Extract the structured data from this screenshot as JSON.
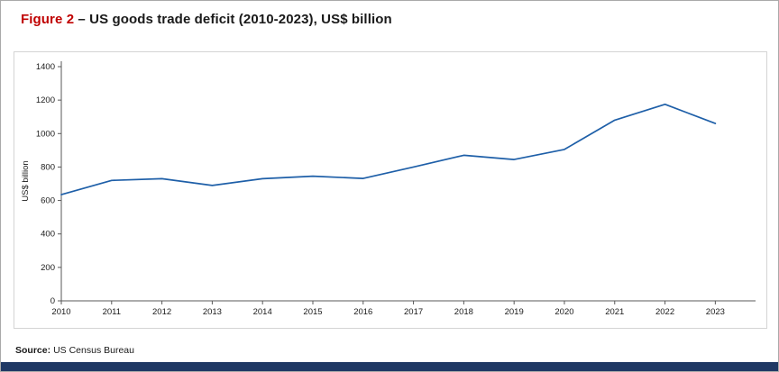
{
  "title": {
    "figure_label": "Figure 2",
    "separator": " – ",
    "text": "US goods trade deficit (2010-2023), US$ billion"
  },
  "source": {
    "label": "Source:",
    "text": "US Census Bureau"
  },
  "colors": {
    "figure_label_red": "#c00000",
    "line": "#1e5fa8",
    "bottom_bar": "#1f3864",
    "axis": "#595959",
    "chart_border": "#d4d4d4"
  },
  "chart_data": {
    "type": "line",
    "title": "US goods trade deficit (2010-2023)",
    "x": [
      2010,
      2011,
      2012,
      2013,
      2014,
      2015,
      2016,
      2017,
      2018,
      2019,
      2020,
      2021,
      2022,
      2023
    ],
    "series": [
      {
        "name": "US goods trade deficit (US$ billion)",
        "values": [
          635,
          720,
          730,
          690,
          730,
          745,
          732,
          800,
          870,
          845,
          905,
          1080,
          1175,
          1060
        ]
      }
    ],
    "xlabel": "",
    "ylabel": "US$ billion",
    "ylim": [
      0,
      1400
    ],
    "yticks": [
      0,
      200,
      400,
      600,
      800,
      1000,
      1200,
      1400
    ],
    "grid": false,
    "legend": "none"
  }
}
